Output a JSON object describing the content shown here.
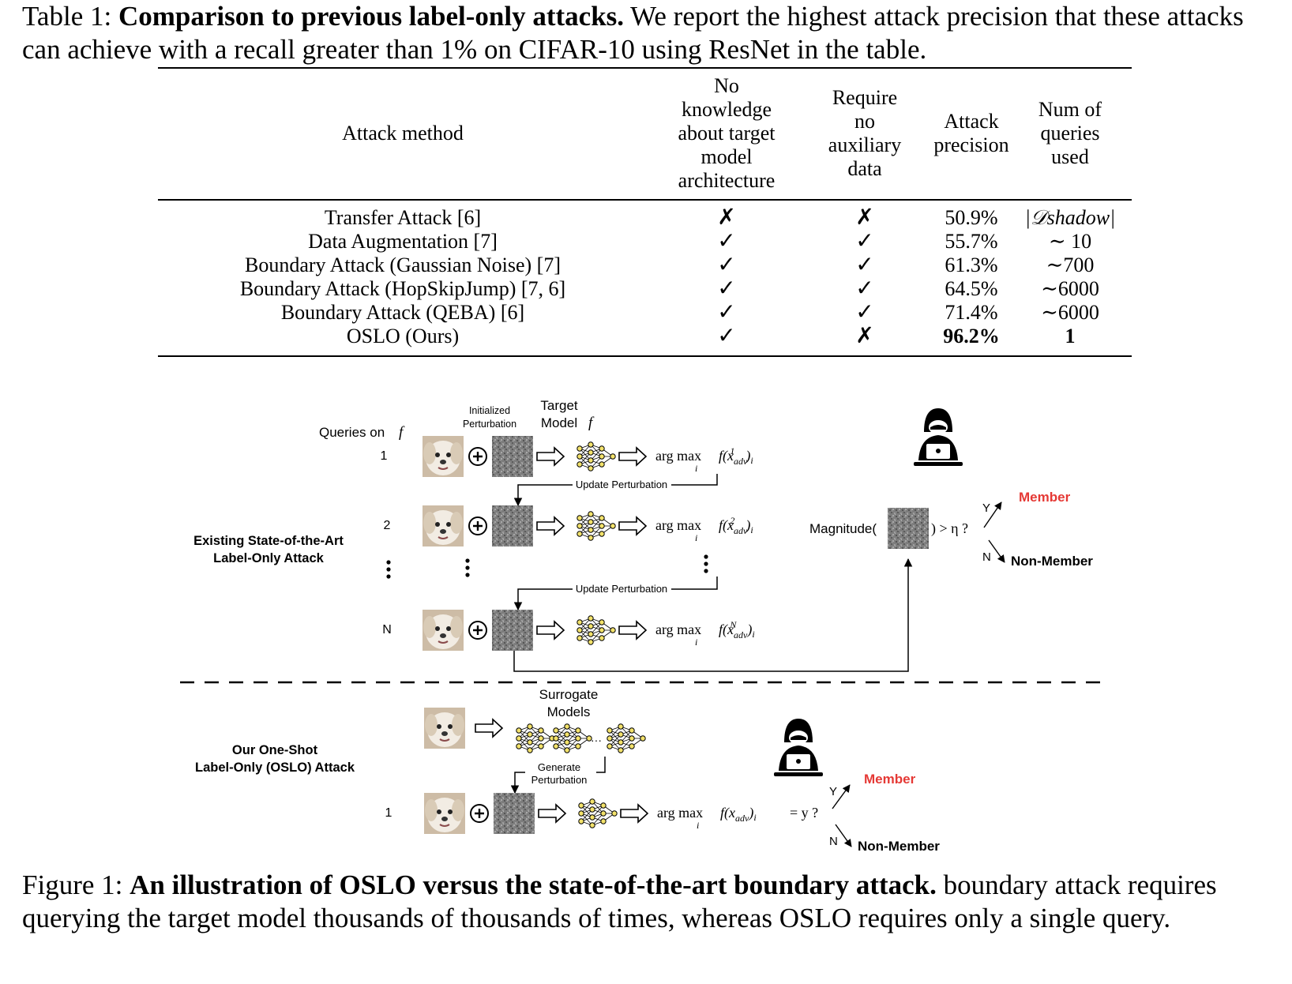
{
  "table_caption": {
    "prefix": "Table 1: ",
    "bold": "Comparison to previous label-only attacks.",
    "rest": " We report the highest attack precision that these attacks can achieve with a recall greater than 1% on CIFAR-10 using ResNet in the table."
  },
  "table": {
    "headers": {
      "method": "Attack method",
      "no_knowledge": [
        "No",
        "knowledge",
        "about target",
        "model",
        "architecture"
      ],
      "no_aux": [
        "Require",
        "no",
        "auxiliary",
        "data"
      ],
      "precision": [
        "Attack",
        "precision"
      ],
      "queries": [
        "Num of",
        "queries",
        "used"
      ]
    },
    "rows": [
      {
        "method": "Transfer Attack [6]",
        "no_knowledge": "✗",
        "no_aux": "✗",
        "precision": "50.9%",
        "queries": "|𝒟shadow|"
      },
      {
        "method": "Data Augmentation [7]",
        "no_knowledge": "✓",
        "no_aux": "✓",
        "precision": "55.7%",
        "queries": "∼ 10"
      },
      {
        "method": "Boundary Attack (Gaussian Noise) [7]",
        "no_knowledge": "✓",
        "no_aux": "✓",
        "precision": "61.3%",
        "queries": "∼700"
      },
      {
        "method": "Boundary Attack (HopSkipJump) [7, 6]",
        "no_knowledge": "✓",
        "no_aux": "✓",
        "precision": "64.5%",
        "queries": "∼6000"
      },
      {
        "method": "Boundary Attack (QEBA) [6]",
        "no_knowledge": "✓",
        "no_aux": "✓",
        "precision": "71.4%",
        "queries": "∼6000"
      },
      {
        "method": "OSLO (Ours)",
        "no_knowledge": "✓",
        "no_aux": "✗",
        "precision": "96.2%",
        "queries": "1"
      }
    ]
  },
  "figure": {
    "queries_on": "Queries on",
    "f": "f",
    "init_perturbation": [
      "Initialized",
      "Perturbation"
    ],
    "target_model": [
      "Target",
      "Model"
    ],
    "update_perturbation": "Update Perturbation",
    "existing_label": [
      "Existing State-of-the-Art",
      "Label-Only Attack"
    ],
    "query_indices": [
      "1",
      "2",
      "N"
    ],
    "argmax": "arg max",
    "argmax_sub": "i",
    "magnitude": "Magnitude(",
    "threshold": ") > η ?",
    "y_label": "Y",
    "n_label": "N",
    "member": "Member",
    "non_member": "Non-Member",
    "surrogate_models": [
      "Surrogate",
      "Models"
    ],
    "ours_label": [
      "Our One-Shot",
      "Label-Only (OSLO) Attack"
    ],
    "generate_perturbation": [
      "Generate",
      "Perturbation"
    ],
    "oslo_index": "1",
    "oslo_condition": "= y ?",
    "member_color": "#e53935"
  },
  "figure_caption": {
    "prefix": "Figure 1: ",
    "bold": "An illustration of OSLO versus the state-of-the-art boundary attack.",
    "rest": " boundary attack requires querying the target model thousands of thousands of times, whereas OSLO requires only a single query."
  }
}
